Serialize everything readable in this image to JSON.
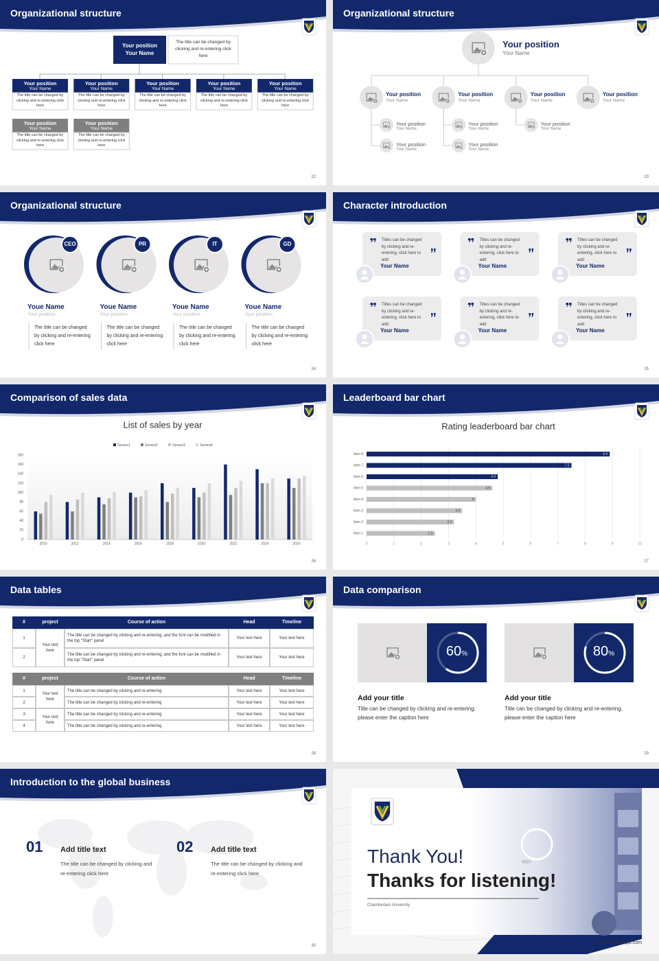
{
  "slides": [
    {
      "title": "Organizational structure",
      "page": "22",
      "top": {
        "position": "Your position",
        "name": "Your Name",
        "desc": "The title can be changed by clicking and re-entering click here"
      },
      "boxes": [
        {
          "position": "Your position",
          "name": "Your Name",
          "desc": "The title can be changed by clicking and re-entering click here",
          "color": "#12286b"
        },
        {
          "position": "Your position",
          "name": "Your Name",
          "desc": "The title can be changed by clicking and re-entering click here",
          "color": "#12286b"
        },
        {
          "position": "Your position",
          "name": "Your Name",
          "desc": "The title can be changed by clicking and re-entering click here",
          "color": "#12286b"
        },
        {
          "position": "Your position",
          "name": "Your Name",
          "desc": "The title can be changed by clicking and re-entering click here",
          "color": "#12286b"
        },
        {
          "position": "Your position",
          "name": "Your Name",
          "desc": "The title can be changed by clicking and re-entering click here",
          "color": "#12286b"
        },
        {
          "position": "Your position",
          "name": "Your Name",
          "desc": "The title can be changed by clicking and re-entering click here",
          "color": "#7f7f7f"
        },
        {
          "position": "Your position",
          "name": "Your Name",
          "desc": "The title can be changed by clicking and re-entering click here",
          "color": "#7f7f7f"
        }
      ]
    },
    {
      "title": "Organizational structure",
      "page": "23",
      "top": {
        "position": "Your position",
        "name": "Your Name"
      },
      "level1": [
        {
          "position": "Your position",
          "name": "Your Name",
          "children": [
            {
              "position": "Your position",
              "name": "Your Name"
            },
            {
              "position": "Your position",
              "name": "Your Name"
            }
          ]
        },
        {
          "position": "Your position",
          "name": "Your Name",
          "children": [
            {
              "position": "Your position",
              "name": "Your Name"
            },
            {
              "position": "Your position",
              "name": "Your Name"
            }
          ]
        },
        {
          "position": "Your position",
          "name": "Your Name",
          "children": [
            {
              "position": "Your position",
              "name": "Your Name"
            }
          ]
        },
        {
          "position": "Your position",
          "name": "Your Name",
          "children": []
        }
      ]
    },
    {
      "title": "Organizational structure",
      "page": "24",
      "people": [
        {
          "tag": "CEO",
          "name": "Youe Name",
          "position": "Your position",
          "desc": "The title can be changed by clicking and re-entering click here"
        },
        {
          "tag": "PR",
          "name": "Youe Name",
          "position": "Your position",
          "desc": "The title can be changed by clicking and re-entering click here"
        },
        {
          "tag": "IT",
          "name": "Youe Name",
          "position": "Your position",
          "desc": "The title can be changed by clicking and re-entering click here"
        },
        {
          "tag": "GD",
          "name": "Youe Name",
          "position": "Your position",
          "desc": "The title can be changed by clicking and re-entering click here"
        }
      ]
    },
    {
      "title": "Character introduction",
      "page": "25",
      "cards": [
        {
          "text": "Titles can be changed by clicking and re-entering, click here to add",
          "name": "Your Name"
        },
        {
          "text": "Titles can be changed by clicking and re-entering, click here to add",
          "name": "Your Name"
        },
        {
          "text": "Titles can be changed by clicking and re-entering, click here to add",
          "name": "Your Name"
        },
        {
          "text": "Titles can be changed by clicking and re-entering, click here to add",
          "name": "Your Name"
        },
        {
          "text": "Titles can be changed by clicking and re-entering, click here to add",
          "name": "Your Name"
        },
        {
          "text": "Titles can be changed by clicking and re-entering, click here to add",
          "name": "Your Name"
        }
      ]
    },
    {
      "title": "Comparison of sales data",
      "page": "26",
      "chart": {
        "type": "bar",
        "title": "List of sales by year",
        "categories": [
          "2010",
          "2012",
          "2014",
          "2016",
          "2018",
          "2020",
          "2022",
          "2024",
          "2026"
        ],
        "series": [
          {
            "name": "Series1",
            "color": "#12286b",
            "values": [
              60,
              80,
              90,
              100,
              120,
              110,
              160,
              150,
              130
            ]
          },
          {
            "name": "Series2",
            "color": "#7f7f7f",
            "values": [
              55,
              60,
              75,
              90,
              80,
              90,
              95,
              120,
              110
            ]
          },
          {
            "name": "Series3",
            "color": "#bfbfbf",
            "values": [
              80,
              85,
              88,
              92,
              98,
              100,
              110,
              120,
              130
            ]
          },
          {
            "name": "Series4",
            "color": "#d9d9d9",
            "values": [
              95,
              100,
              102,
              105,
              110,
              120,
              125,
              130,
              135
            ]
          }
        ],
        "ylim": [
          0,
          180
        ],
        "yticks": [
          0,
          20,
          40,
          60,
          80,
          100,
          120,
          140,
          160,
          180
        ],
        "grid": false
      }
    },
    {
      "title": "Leaderboard bar chart",
      "page": "27",
      "chart": {
        "type": "hbar",
        "title": "Rating leaderboard bar chart",
        "categories": [
          "Item 1",
          "Item 2",
          "Item 3",
          "Item 4",
          "Item 5",
          "Item 6",
          "Item 7",
          "Item 8"
        ],
        "values": [
          2.5,
          3.2,
          3.5,
          4,
          4.6,
          4.8,
          7.5,
          8.9
        ],
        "colors": [
          "#bfbfbf",
          "#bfbfbf",
          "#bfbfbf",
          "#bfbfbf",
          "#bfbfbf",
          "#12286b",
          "#12286b",
          "#12286b"
        ],
        "xlim": [
          0,
          10
        ],
        "xticks": [
          0,
          1,
          2,
          3,
          4,
          5,
          6,
          7,
          8,
          9,
          10
        ],
        "grid": true
      }
    },
    {
      "title": "Data tables",
      "page": "28",
      "table1": {
        "header": [
          "#",
          "project",
          "Course of action",
          "Head",
          "Timeline"
        ],
        "project": "Your text here",
        "rows": [
          {
            "num": "1",
            "action": "The title can be changed by clicking and re-entering, and the font can be modified in the top \"Start\" panel",
            "head": "Your text here",
            "timeline": "Your text here"
          },
          {
            "num": "2",
            "action": "The title can be changed by clicking and re-entering, and the font can be modified in the top \"Start\" panel",
            "head": "Your text here",
            "timeline": "Your text here"
          }
        ]
      },
      "table2": {
        "header": [
          "#",
          "project",
          "Course of action",
          "Head",
          "Timeline"
        ],
        "groups": [
          {
            "project": "Your text here",
            "rows": [
              {
                "num": "1",
                "action": "The title can be changed by clicking and re-entering",
                "head": "Your text here",
                "timeline": "Your text here"
              },
              {
                "num": "2",
                "action": "The title can be changed by clicking and re-entering",
                "head": "Your text here",
                "timeline": "Your text here"
              }
            ]
          },
          {
            "project": "Your text here",
            "rows": [
              {
                "num": "3",
                "action": "The title can be changed by clicking and re-entering",
                "head": "Your text here",
                "timeline": "Your text here"
              },
              {
                "num": "4",
                "action": "The title can be changed by clicking and re-entering",
                "head": "Your text here",
                "timeline": "Your text here"
              }
            ]
          }
        ]
      }
    },
    {
      "title": "Data comparison",
      "page": "29",
      "items": [
        {
          "percent": 60,
          "unit": "%",
          "title": "Add your title",
          "desc": "Title can be changed by clicking and re-entering, please enter the caption here"
        },
        {
          "percent": 80,
          "unit": "%",
          "title": "Add your title",
          "desc": "Title can be changed by clicking and re-entering, please enter the caption here"
        }
      ]
    },
    {
      "title": "Introduction to the global business",
      "page": "30",
      "items": [
        {
          "num": "01",
          "title": "Add title text",
          "desc": "The title can be changed by clicking and re-entering click here"
        },
        {
          "num": "02",
          "title": "Add title text",
          "desc": "The title can be changed by clicking and re-entering click here"
        }
      ]
    },
    {
      "title": "Thank You!",
      "subtitle": "Thanks for listening!",
      "university": "Chamberlain University",
      "photo_text": "4910",
      "website": "www.collegeppt.com"
    }
  ]
}
